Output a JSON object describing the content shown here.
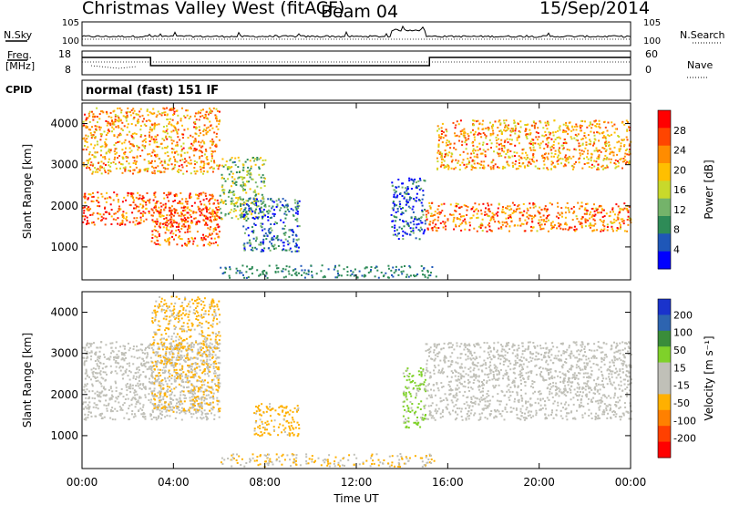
{
  "header": {
    "station": "Christmas Valley West (fitACF)",
    "beam": "Beam 04",
    "date": "15/Sep/2014"
  },
  "status_panels": {
    "nsky_label": "N.Sky",
    "nsearch_label": "N.Search",
    "freq_label_1": "Freq.",
    "freq_label_2": "[MHz]",
    "nave_label": "Nave",
    "cpid_label": "CPID",
    "cpid_value": "normal (fast) 151 IF",
    "noise_ticks": [
      "10^5",
      "10^0"
    ],
    "freq_ticks": [
      "18",
      "8"
    ],
    "nave_ticks": [
      "60",
      "0"
    ]
  },
  "colors": {
    "power_scale": [
      "#0000ff",
      "#1f57b8",
      "#2e8b57",
      "#74b36a",
      "#c8d92b",
      "#ffbf00",
      "#ff8c00",
      "#ff4500",
      "#ff0000"
    ],
    "velocity_scale": [
      "#1a33cc",
      "#2d64b0",
      "#3a8d3a",
      "#7fd12a",
      "#c0c0b8",
      "#c0c0b8",
      "#ffb000",
      "#ff8000",
      "#ff4000",
      "#ff0000"
    ]
  },
  "chart_data": [
    {
      "type": "heatmap",
      "name": "Power",
      "xlabel": "",
      "ylabel": "Slant Range [km]",
      "xlim": [
        0,
        24
      ],
      "ylim": [
        200,
        4500
      ],
      "y_ticks": [
        1000,
        2000,
        3000,
        4000
      ],
      "colorbar": {
        "label": "Power [dB]",
        "ticks": [
          4,
          8,
          12,
          16,
          20,
          24,
          28
        ],
        "range": [
          0,
          32
        ]
      },
      "features": [
        {
          "desc": "near range band",
          "t_start": 0,
          "t_end": 6,
          "range_start": 1550,
          "range_end": 2350,
          "value": 26
        },
        {
          "desc": "near range band",
          "t_start": 3,
          "t_end": 6,
          "range_start": 1050,
          "range_end": 2000,
          "value": 25
        },
        {
          "desc": "far range band",
          "t_start": 0,
          "t_end": 6,
          "range_start": 2800,
          "range_end": 4400,
          "value": 22
        },
        {
          "desc": "mid arc",
          "t_start": 6,
          "t_end": 8,
          "range_start": 1700,
          "range_end": 3200,
          "value": 14
        },
        {
          "desc": "mid blob",
          "t_start": 7,
          "t_end": 9.5,
          "range_start": 900,
          "range_end": 2200,
          "value": 7
        },
        {
          "desc": "sporadic echo",
          "t_start": 13.5,
          "t_end": 15,
          "range_start": 1200,
          "range_end": 2700,
          "value": 6
        },
        {
          "desc": "evening near band",
          "t_start": 15,
          "t_end": 24,
          "range_start": 1400,
          "range_end": 2100,
          "value": 24
        },
        {
          "desc": "evening far band",
          "t_start": 15.5,
          "t_end": 24,
          "range_start": 2900,
          "range_end": 4100,
          "value": 22
        }
      ]
    },
    {
      "type": "heatmap",
      "name": "Velocity",
      "xlabel": "Time UT",
      "ylabel": "Slant Range [km]",
      "xlim": [
        0,
        24
      ],
      "ylim": [
        200,
        4500
      ],
      "x_ticks": [
        "00:00",
        "04:00",
        "08:00",
        "12:00",
        "16:00",
        "20:00",
        "00:00"
      ],
      "y_ticks": [
        1000,
        2000,
        3000,
        4000
      ],
      "colorbar": {
        "label": "Velocity [m s^-1]",
        "ticks": [
          200,
          100,
          50,
          15,
          -15,
          -50,
          -100,
          -200
        ],
        "range": [
          -250,
          250
        ]
      },
      "features": [
        {
          "desc": "ground scatter bands",
          "t_start": 0,
          "t_end": 6,
          "range_start": 1400,
          "range_end": 3300,
          "value": 0
        },
        {
          "desc": "positive arcs",
          "t_start": 3,
          "t_end": 6,
          "range_start": 1600,
          "range_end": 4400,
          "value": -60
        },
        {
          "desc": "orange blob",
          "t_start": 7.5,
          "t_end": 9.5,
          "range_start": 1000,
          "range_end": 1800,
          "value": -70
        },
        {
          "desc": "green streak",
          "t_start": 14,
          "t_end": 15,
          "range_start": 1200,
          "range_end": 2700,
          "value": 60
        },
        {
          "desc": "evening gray bands",
          "t_start": 15,
          "t_end": 24,
          "range_start": 1400,
          "range_end": 3300,
          "value": 0
        }
      ]
    }
  ]
}
